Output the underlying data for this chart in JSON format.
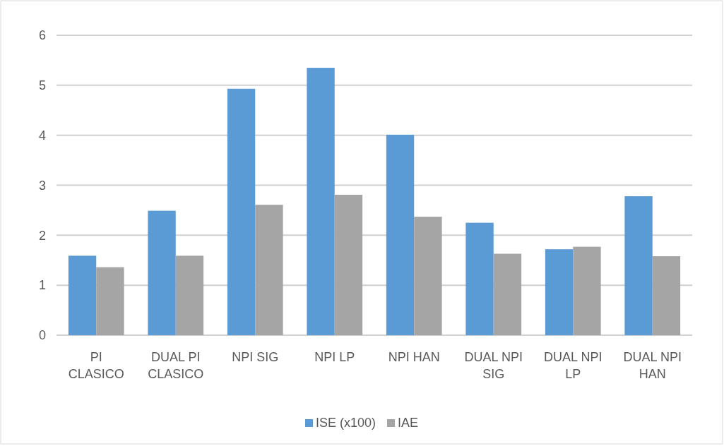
{
  "chart_data": {
    "type": "bar",
    "categories": [
      "PI CLASICO",
      "DUAL PI CLASICO",
      "NPI SIG",
      "NPI LP",
      "NPI HAN",
      "DUAL NPI SIG",
      "DUAL NPI LP",
      "DUAL NPI HAN"
    ],
    "series": [
      {
        "name": "ISE (x100)",
        "color": "#5b9bd5",
        "values": [
          1.59,
          2.49,
          4.93,
          5.35,
          4.01,
          2.25,
          1.72,
          2.78
        ]
      },
      {
        "name": "IAE",
        "color": "#a5a5a5",
        "values": [
          1.36,
          1.59,
          2.61,
          2.81,
          2.37,
          1.63,
          1.77,
          1.58
        ]
      }
    ],
    "ylim": [
      0,
      6
    ],
    "yticks": [
      0,
      1,
      2,
      3,
      4,
      5,
      6
    ],
    "grid": "y",
    "legend": "bottom"
  }
}
